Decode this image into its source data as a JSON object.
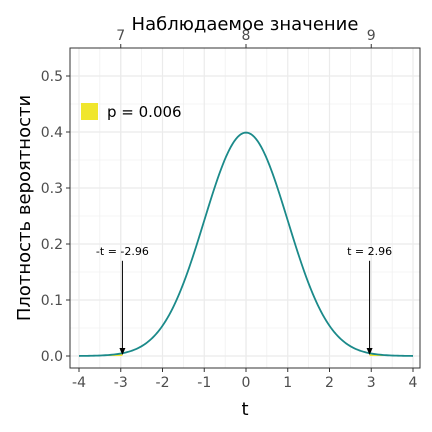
{
  "chart_data": {
    "type": "line",
    "title": "",
    "xlabel": "t",
    "ylabel": "Плотность вероятности",
    "secondary_xlabel": "Наблюдаемое значение",
    "xlim": [
      -4,
      4
    ],
    "ylim": [
      0,
      0.5
    ],
    "x_ticks": [
      -4,
      -3,
      -2,
      -1,
      0,
      1,
      2,
      3,
      4
    ],
    "x_tick_labels": [
      "-4",
      "-3",
      "-2",
      "-1",
      "0",
      "1",
      "2",
      "3",
      "4"
    ],
    "y_ticks": [
      0,
      0.1,
      0.2,
      0.3,
      0.4,
      0.5
    ],
    "y_tick_labels": [
      "0.0",
      "0.1",
      "0.2",
      "0.3",
      "0.4",
      "0.5"
    ],
    "secondary_x_ticks": [
      -3,
      0,
      3
    ],
    "secondary_x_tick_labels": [
      "7",
      "8",
      "9"
    ],
    "grid": true,
    "series": [
      {
        "distribution": "standard normal density",
        "x_range": [
          -4,
          4
        ],
        "mean": 0,
        "sd": 1,
        "peak": 0.3989
      }
    ],
    "shaded_regions": [
      {
        "x_range": [
          -4,
          -2.96
        ],
        "label": "p = 0.006"
      },
      {
        "x_range": [
          2.96,
          4
        ],
        "label": "p = 0.006"
      }
    ],
    "annotations": [
      {
        "text": "-t = -2.96",
        "x": -2.96,
        "text_y": 0.17
      },
      {
        "text": "t = 2.96",
        "x": 2.96,
        "text_y": 0.17
      }
    ],
    "legend": {
      "position": "top-left",
      "entries": [
        {
          "label": "p = 0.006",
          "color": "#f0e62c"
        }
      ]
    },
    "colors": {
      "curve": "#1b8a8a",
      "fill": "#f0e62c",
      "grid": "#ebebeb",
      "frame": "#333333"
    }
  }
}
